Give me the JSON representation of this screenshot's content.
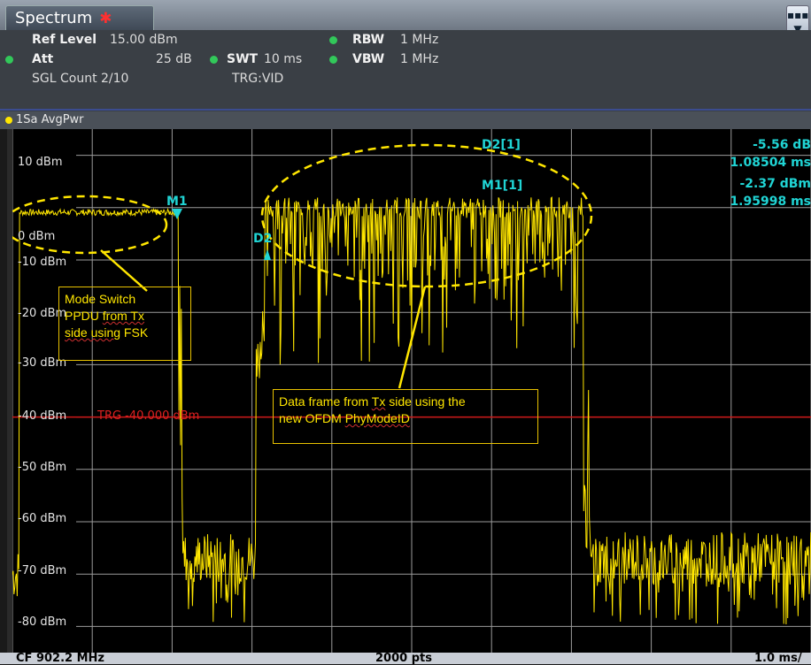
{
  "tab": {
    "title": "Spectrum",
    "star": "✱"
  },
  "menu_button": {
    "icon": "more-icon",
    "glyph": "▪▪▪\n▼"
  },
  "settings": {
    "ref_level_label": "Ref Level",
    "ref_level_value": "15.00 dBm",
    "att_label": "Att",
    "att_value": "25 dB",
    "swt_label": "SWT",
    "swt_value": "10 ms",
    "rbw_label": "RBW",
    "rbw_value": "1 MHz",
    "vbw_label": "VBW",
    "vbw_value": "1 MHz",
    "sgl_count": "SGL Count 2/10",
    "trg": "TRG:VID"
  },
  "trace": {
    "label": "1Sa AvgPwr"
  },
  "y_axis": [
    "10 dBm",
    "0 dBm",
    "-10 dBm",
    "-20 dBm",
    "-30 dBm",
    "-40 dBm",
    "-50 dBm",
    "-60 dBm",
    "-70 dBm",
    "-80 dBm"
  ],
  "trigger_line": {
    "label": "TRG -40.000 dBm",
    "level_dbm": -40
  },
  "markers": {
    "m1": "M1",
    "d2": "D2",
    "d2_readout_label": "D2[1]",
    "d2_readout_level": "-5.56 dB",
    "d2_readout_time": "1.08504 ms",
    "m1_readout_label": "M1[1]",
    "m1_readout_level": "-2.37 dBm",
    "m1_readout_time": "1.95998 ms"
  },
  "annotations": {
    "mode_switch": {
      "line1": "Mode Switch",
      "line2_a": "PPDU ",
      "line2_b": "from Tx",
      "line3_a": "side using",
      "line3_b": " FSK"
    },
    "data_frame": {
      "line1_a": "Data frame from ",
      "line1_b": "Tx",
      "line1_c": " side using the",
      "line2_a": "new OFDM ",
      "line2_b": "PhyModeID"
    }
  },
  "footer": {
    "cf": "CF 902.2 MHz",
    "pts": "2000 pts",
    "span": "1.0 ms/"
  },
  "colors": {
    "trace": "#ffe600",
    "marker": "#20d4d4",
    "trigger": "#d01818",
    "grid": "#cfcfcf"
  }
}
